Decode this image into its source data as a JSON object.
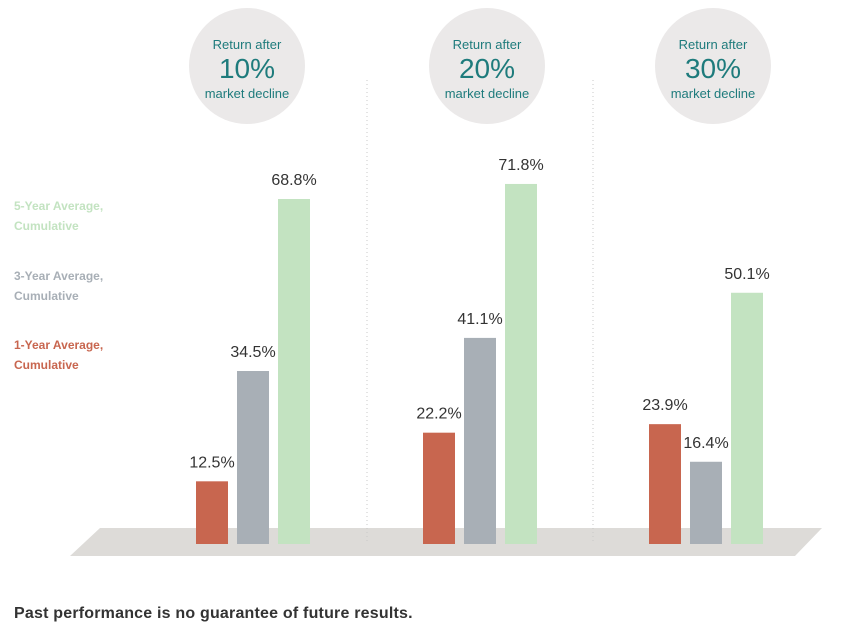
{
  "colors": {
    "one_year": "#c8664f",
    "three_year": "#a8afb6",
    "five_year": "#c3e3c1",
    "accent_teal": "#1e7b7c",
    "circle": "#ebe9e9",
    "floor": "#dddbd8",
    "text": "#333333"
  },
  "legend": [
    {
      "line1": "5-Year Average,",
      "line2": "Cumulative",
      "color": "#c3e3c1"
    },
    {
      "line1": "3-Year Average,",
      "line2": "Cumulative",
      "color": "#a8afb6"
    },
    {
      "line1": "1-Year Average,",
      "line2": "Cumulative",
      "color": "#c8664f"
    }
  ],
  "footnote": "Past performance is no guarantee of future results.",
  "chart_data": {
    "type": "bar",
    "groups": [
      {
        "line1": "Return after",
        "big": "10%",
        "line3": "market decline"
      },
      {
        "line1": "Return after",
        "big": "20%",
        "line3": "market decline"
      },
      {
        "line1": "Return after",
        "big": "30%",
        "line3": "market decline"
      }
    ],
    "categories": [
      "10%",
      "20%",
      "30%"
    ],
    "series": [
      {
        "name": "1-Year Average, Cumulative",
        "values": [
          12.5,
          22.2,
          23.9
        ],
        "labels": [
          "12.5%",
          "22.2%",
          "23.9%"
        ]
      },
      {
        "name": "3-Year Average, Cumulative",
        "values": [
          34.5,
          41.1,
          16.4
        ],
        "labels": [
          "34.5%",
          "41.1%",
          "16.4%"
        ]
      },
      {
        "name": "5-Year Average, Cumulative",
        "values": [
          68.8,
          71.8,
          50.1
        ],
        "labels": [
          "68.8%",
          "71.8%",
          "50.1%"
        ]
      }
    ],
    "ylim": [
      0,
      75
    ]
  }
}
